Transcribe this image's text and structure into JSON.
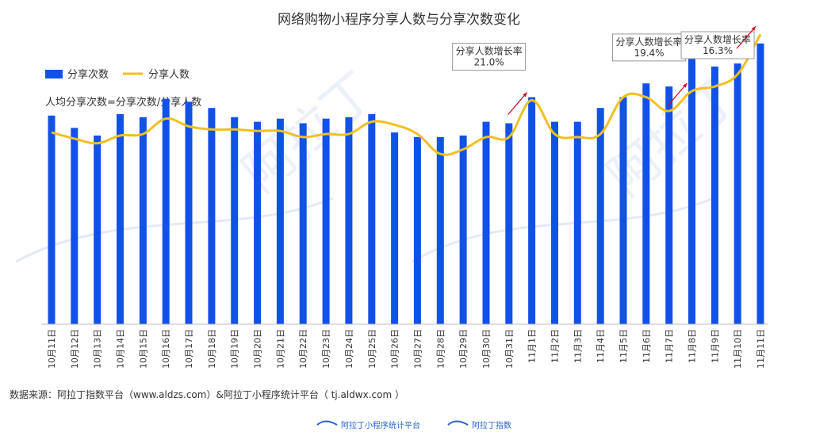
{
  "chart_data": {
    "type": "bar",
    "title": "网络购物小程序分享人数与分享次数变化",
    "subtitle": "人均分享次数=分享次数/分享人数",
    "categories": [
      "10月11日",
      "10月12日",
      "10月13日",
      "10月14日",
      "10月15日",
      "10月16日",
      "10月17日",
      "10月18日",
      "10月19日",
      "10月20日",
      "10月21日",
      "10月22日",
      "10月23日",
      "10月24日",
      "10月25日",
      "10月26日",
      "10月27日",
      "10月28日",
      "10月29日",
      "10月30日",
      "10月31日",
      "11月1日",
      "11月2日",
      "11月3日",
      "11月4日",
      "11月5日",
      "11月6日",
      "11月7日",
      "11月8日",
      "11月9日",
      "11月10日",
      "11月11日"
    ],
    "ylim": [
      0,
      100
    ],
    "series": [
      {
        "name": "分享次数",
        "kind": "bar",
        "color": "#1251e8",
        "values": [
          68.0,
          64.0,
          61.5,
          68.5,
          67.5,
          73.5,
          72.5,
          70.5,
          67.5,
          66.0,
          67.0,
          65.5,
          67.0,
          67.5,
          68.5,
          62.5,
          61.0,
          61.0,
          61.5,
          66.0,
          65.5,
          74.0,
          66.0,
          66.0,
          70.5,
          74.0,
          78.5,
          77.5,
          89.0,
          84.0,
          85.0,
          91.5
        ]
      },
      {
        "name": "分享人数",
        "kind": "line",
        "color": "#f0c022",
        "values": [
          62.5,
          60.5,
          59.0,
          61.5,
          62.0,
          67.0,
          64.5,
          63.5,
          63.5,
          63.0,
          63.0,
          61.0,
          62.0,
          62.0,
          66.0,
          65.0,
          62.0,
          55.5,
          57.0,
          61.0,
          61.0,
          73.0,
          62.0,
          61.0,
          62.0,
          74.0,
          74.0,
          69.5,
          76.0,
          77.5,
          81.5,
          94.5
        ]
      }
    ],
    "annotations": [
      {
        "label": "分享人数增长率",
        "value": "21.0%",
        "at_index": 21
      },
      {
        "label": "分享人数增长率",
        "value": "19.4%",
        "at_index": 28
      },
      {
        "label": "分享人数增长率",
        "value": "16.3%",
        "at_index": 31
      }
    ],
    "legend_position": "top-left",
    "grid": false
  },
  "source_text": "数据来源：阿拉丁指数平台（www.aldzs.com）&阿拉丁小程序统计平台（ tj.aldwx.com ）",
  "footer": {
    "brand1": "阿拉丁小程序统计平台",
    "brand2": "阿拉丁指数"
  },
  "watermark_text": "阿拉丁",
  "colors": {
    "arrow": "#d0021b",
    "axis": "#bbbbbb"
  }
}
